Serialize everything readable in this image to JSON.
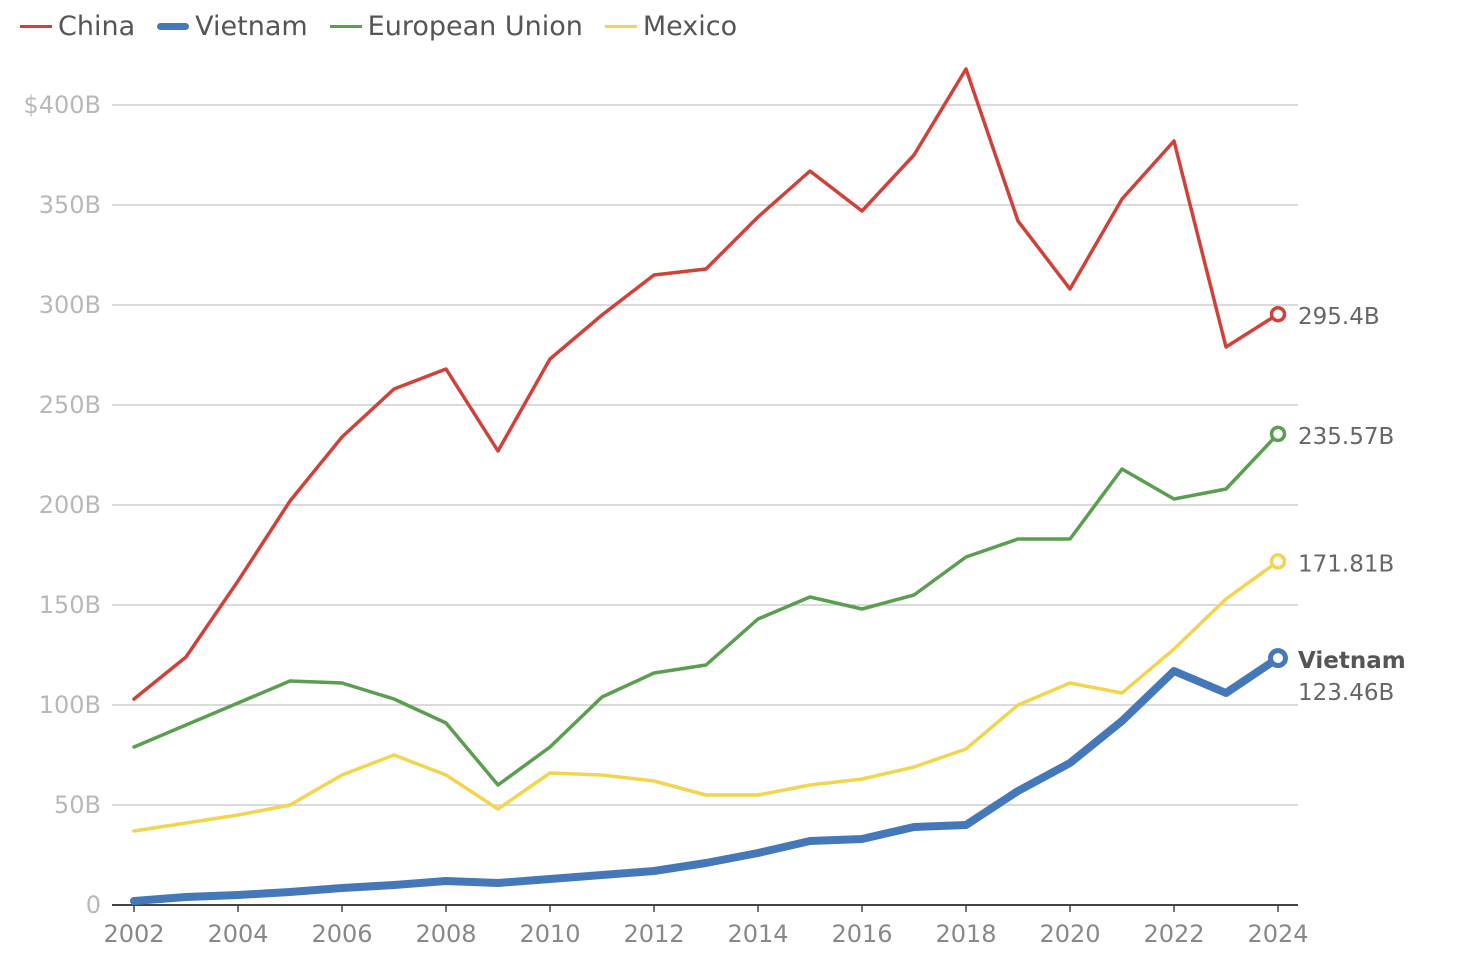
{
  "chart_data": {
    "type": "line",
    "title": "",
    "xlabel": "",
    "ylabel": "",
    "x": [
      2002,
      2003,
      2004,
      2005,
      2006,
      2007,
      2008,
      2009,
      2010,
      2011,
      2012,
      2013,
      2014,
      2015,
      2016,
      2017,
      2018,
      2019,
      2020,
      2021,
      2022,
      2023,
      2024
    ],
    "xticks": [
      "2002",
      "2004",
      "2006",
      "2008",
      "2010",
      "2012",
      "2014",
      "2016",
      "2018",
      "2020",
      "2022",
      "2024"
    ],
    "ylim": [
      0,
      400
    ],
    "yticks": [
      {
        "value": 0,
        "label": "0"
      },
      {
        "value": 50,
        "label": "50B"
      },
      {
        "value": 100,
        "label": "100B"
      },
      {
        "value": 150,
        "label": "150B"
      },
      {
        "value": 200,
        "label": "200B"
      },
      {
        "value": 250,
        "label": "250B"
      },
      {
        "value": 300,
        "label": "300B"
      },
      {
        "value": 350,
        "label": "350B"
      },
      {
        "value": 400,
        "label": "$400B"
      }
    ],
    "grid": true,
    "legend_position": "top-left",
    "series": [
      {
        "name": "China",
        "color": "#d0413a",
        "values": [
          103,
          124,
          162,
          202,
          234,
          258,
          268,
          227,
          273,
          295,
          315,
          318,
          344,
          367,
          347,
          375,
          418,
          342,
          308,
          353,
          382,
          279,
          295.4
        ],
        "end_label": "295.4B",
        "highlight": false
      },
      {
        "name": "Vietnam",
        "color": "#4478b9",
        "values": [
          2,
          4,
          5,
          6.5,
          8.5,
          10,
          12,
          11,
          13,
          15,
          17,
          21,
          26,
          32,
          33,
          39,
          40,
          57,
          71,
          92,
          117,
          106,
          123.46
        ],
        "end_label": "123.46B",
        "end_name": "Vietnam",
        "highlight": true
      },
      {
        "name": "European Union",
        "color": "#5a9e4f",
        "values": [
          79,
          90,
          101,
          112,
          111,
          103,
          91,
          60,
          79,
          104,
          116,
          120,
          143,
          154,
          148,
          155,
          174,
          183,
          183,
          218,
          203,
          208,
          235.57
        ],
        "end_label": "235.57B",
        "highlight": false
      },
      {
        "name": "Mexico",
        "color": "#f3d44e",
        "values": [
          37,
          41,
          45,
          50,
          65,
          75,
          65,
          48,
          66,
          65,
          62,
          55,
          55,
          60,
          63,
          69,
          78,
          100,
          111,
          106,
          128,
          153,
          171.81
        ],
        "end_label": "171.81B",
        "highlight": false
      }
    ]
  }
}
